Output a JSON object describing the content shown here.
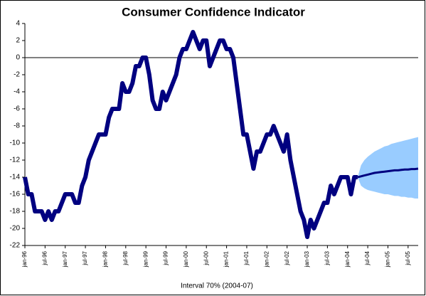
{
  "chart_data": {
    "type": "line",
    "title": "Consumer Confidence Indicator",
    "x_label": "Interval 70% (2004-07)",
    "categories": [
      "jan-96",
      null,
      null,
      null,
      null,
      null,
      "jul-96",
      null,
      null,
      null,
      null,
      null,
      "jan-97",
      null,
      null,
      null,
      null,
      null,
      "jul-97",
      null,
      null,
      null,
      null,
      null,
      "jan-98",
      null,
      null,
      null,
      null,
      null,
      "jul-98",
      null,
      null,
      null,
      null,
      null,
      "jan-99",
      null,
      null,
      null,
      null,
      null,
      "jul-99",
      null,
      null,
      null,
      null,
      null,
      "jan-00",
      null,
      null,
      null,
      null,
      null,
      "jul-00",
      null,
      null,
      null,
      null,
      null,
      "jan-01",
      null,
      null,
      null,
      null,
      null,
      "jul-01",
      null,
      null,
      null,
      null,
      null,
      "jan-02",
      null,
      null,
      null,
      null,
      null,
      "jul-02",
      null,
      null,
      null,
      null,
      null,
      "jan-03",
      null,
      null,
      null,
      null,
      null,
      "jul-03",
      null,
      null,
      null,
      null,
      null,
      "jan-04",
      null,
      null,
      null,
      null,
      null,
      "jul-04",
      null,
      null,
      null,
      null,
      null,
      "jan-05",
      null,
      null,
      null,
      null,
      null,
      "jul-05",
      null,
      null,
      null
    ],
    "series": [
      {
        "color": "#000080",
        "values": [
          -14,
          -16,
          -16,
          -18,
          -18,
          -18,
          -19,
          -18,
          -19,
          -18,
          -18,
          -17,
          -16,
          -16,
          -16,
          -17,
          -17,
          -15,
          -14,
          -12,
          -11,
          -10,
          -9,
          -9,
          -9,
          -7,
          -6,
          -6,
          -6,
          -3,
          -4,
          -4,
          -3,
          -1,
          -1,
          0,
          0,
          -2,
          -5,
          -6,
          -6,
          -4,
          -5,
          -4,
          -3,
          -2,
          0,
          1,
          1,
          2,
          3,
          2,
          1,
          2,
          2,
          -1,
          0,
          1,
          2,
          2,
          1,
          1,
          0,
          -3,
          -6,
          -9,
          -9,
          -11,
          -13,
          -11,
          -11,
          -10,
          -9,
          -9,
          -8,
          -9,
          -10,
          -11,
          -9,
          -12,
          -14,
          -16,
          -18,
          -19,
          -21,
          -19,
          -20,
          -19,
          -18,
          -17,
          -17,
          -15,
          -16,
          -15,
          -14,
          -14,
          -14,
          -16,
          -14,
          -14,
          null,
          null,
          null,
          null,
          null,
          null,
          null,
          null,
          null,
          null,
          null,
          null,
          null,
          null,
          null,
          null,
          null,
          null
        ]
      },
      {
        "color": "#000080",
        "band_color": "#99ccff",
        "values": [
          null,
          null,
          null,
          null,
          null,
          null,
          null,
          null,
          null,
          null,
          null,
          null,
          null,
          null,
          null,
          null,
          null,
          null,
          null,
          null,
          null,
          null,
          null,
          null,
          null,
          null,
          null,
          null,
          null,
          null,
          null,
          null,
          null,
          null,
          null,
          null,
          null,
          null,
          null,
          null,
          null,
          null,
          null,
          null,
          null,
          null,
          null,
          null,
          null,
          null,
          null,
          null,
          null,
          null,
          null,
          null,
          null,
          null,
          null,
          null,
          null,
          null,
          null,
          null,
          null,
          null,
          null,
          null,
          null,
          null,
          null,
          null,
          null,
          null,
          null,
          null,
          null,
          null,
          null,
          null,
          null,
          null,
          null,
          null,
          null,
          null,
          null,
          null,
          null,
          null,
          null,
          null,
          null,
          null,
          null,
          null,
          null,
          null,
          null,
          -14,
          -13.9,
          -13.8,
          -13.7,
          -13.6,
          -13.5,
          -13.45,
          -13.4,
          -13.35,
          -13.3,
          -13.25,
          -13.2,
          -13.2,
          -13.15,
          -13.1,
          -13.1,
          -13.05,
          -13.05,
          -13
        ],
        "lower": [
          null,
          null,
          null,
          null,
          null,
          null,
          null,
          null,
          null,
          null,
          null,
          null,
          null,
          null,
          null,
          null,
          null,
          null,
          null,
          null,
          null,
          null,
          null,
          null,
          null,
          null,
          null,
          null,
          null,
          null,
          null,
          null,
          null,
          null,
          null,
          null,
          null,
          null,
          null,
          null,
          null,
          null,
          null,
          null,
          null,
          null,
          null,
          null,
          null,
          null,
          null,
          null,
          null,
          null,
          null,
          null,
          null,
          null,
          null,
          null,
          null,
          null,
          null,
          null,
          null,
          null,
          null,
          null,
          null,
          null,
          null,
          null,
          null,
          null,
          null,
          null,
          null,
          null,
          null,
          null,
          null,
          null,
          null,
          null,
          null,
          null,
          null,
          null,
          null,
          null,
          null,
          null,
          null,
          null,
          null,
          null,
          null,
          null,
          null,
          -14,
          -15,
          -15.3,
          -15.5,
          -15.6,
          -15.7,
          -15.8,
          -15.9,
          -16,
          -16,
          -16.1,
          -16.2,
          -16.2,
          -16.3,
          -16.3,
          -16.4,
          -16.4,
          -16.5,
          -16.5
        ],
        "upper": [
          null,
          null,
          null,
          null,
          null,
          null,
          null,
          null,
          null,
          null,
          null,
          null,
          null,
          null,
          null,
          null,
          null,
          null,
          null,
          null,
          null,
          null,
          null,
          null,
          null,
          null,
          null,
          null,
          null,
          null,
          null,
          null,
          null,
          null,
          null,
          null,
          null,
          null,
          null,
          null,
          null,
          null,
          null,
          null,
          null,
          null,
          null,
          null,
          null,
          null,
          null,
          null,
          null,
          null,
          null,
          null,
          null,
          null,
          null,
          null,
          null,
          null,
          null,
          null,
          null,
          null,
          null,
          null,
          null,
          null,
          null,
          null,
          null,
          null,
          null,
          null,
          null,
          null,
          null,
          null,
          null,
          null,
          null,
          null,
          null,
          null,
          null,
          null,
          null,
          null,
          null,
          null,
          null,
          null,
          null,
          null,
          null,
          null,
          null,
          -14,
          -12.6,
          -12,
          -11.6,
          -11.3,
          -11,
          -10.8,
          -10.6,
          -10.4,
          -10.3,
          -10.1,
          -10,
          -9.9,
          -9.8,
          -9.7,
          -9.6,
          -9.5,
          -9.4,
          -9.3
        ]
      }
    ],
    "ylim": [
      -22,
      4
    ],
    "yticks": [
      -22,
      -20,
      -18,
      -16,
      -14,
      -12,
      -10,
      -8,
      -6,
      -4,
      -2,
      0,
      2,
      4
    ],
    "grid": false
  }
}
